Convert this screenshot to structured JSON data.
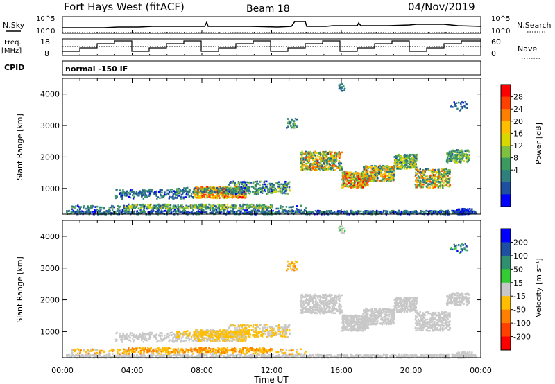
{
  "header": {
    "title": "Fort Hays West (fitACF)",
    "beam": "Beam 18",
    "date": "04/Nov/2019"
  },
  "side_labels": {
    "nsky": "N.Sky",
    "freq_line1": "Freq.",
    "freq_line2": "[MHz]",
    "cpid": "CPID",
    "nsearch": "N.Search",
    "nave": "Nave",
    "mode": "normal -150 IF"
  },
  "noise_panel": {
    "left_ticks": [
      "10^5",
      "10^0"
    ],
    "right_ticks": [
      "10^5",
      "10^0"
    ]
  },
  "freq_panel": {
    "left_ticks": [
      "18",
      "8"
    ],
    "right_ticks": [
      "60",
      "0"
    ]
  },
  "chart_data": [
    {
      "type": "heatmap",
      "name": "power",
      "ylabel": "Slant Range [km]",
      "xlim": [
        0,
        24
      ],
      "ylim": [
        180,
        4500
      ],
      "yticks": [
        1000,
        2000,
        3000,
        4000
      ],
      "colorbar_label": "Power [dB]",
      "colorbar_ticks": [
        "28",
        "24",
        "20",
        "16",
        "12",
        "8",
        "4"
      ],
      "colorbar_colors": [
        "#ff0000",
        "#ff4000",
        "#ff8000",
        "#ffbf00",
        "#d8d800",
        "#80c040",
        "#3a9a60",
        "#2f7f7f",
        "#1f4fa0",
        "#0000ff"
      ]
    },
    {
      "type": "heatmap",
      "name": "velocity",
      "ylabel": "Slant Range [km]",
      "xlabel": "Time UT",
      "xlim": [
        0,
        24
      ],
      "ylim": [
        180,
        4500
      ],
      "xticks": [
        "00:00",
        "04:00",
        "08:00",
        "12:00",
        "16:00",
        "20:00",
        "00:00"
      ],
      "yticks": [
        1000,
        2000,
        3000,
        4000
      ],
      "colorbar_label": "Velocity [m s⁻¹]",
      "colorbar_ticks": [
        "200",
        "100",
        "50",
        "15",
        "-15",
        "-50",
        "-100",
        "-200"
      ],
      "colorbar_colors": [
        "#0000ff",
        "#1f4fa0",
        "#2f8f6f",
        "#33cc33",
        "#c8c8c8",
        "#ffbf00",
        "#ff8000",
        "#ff4000",
        "#ff0000"
      ]
    }
  ]
}
